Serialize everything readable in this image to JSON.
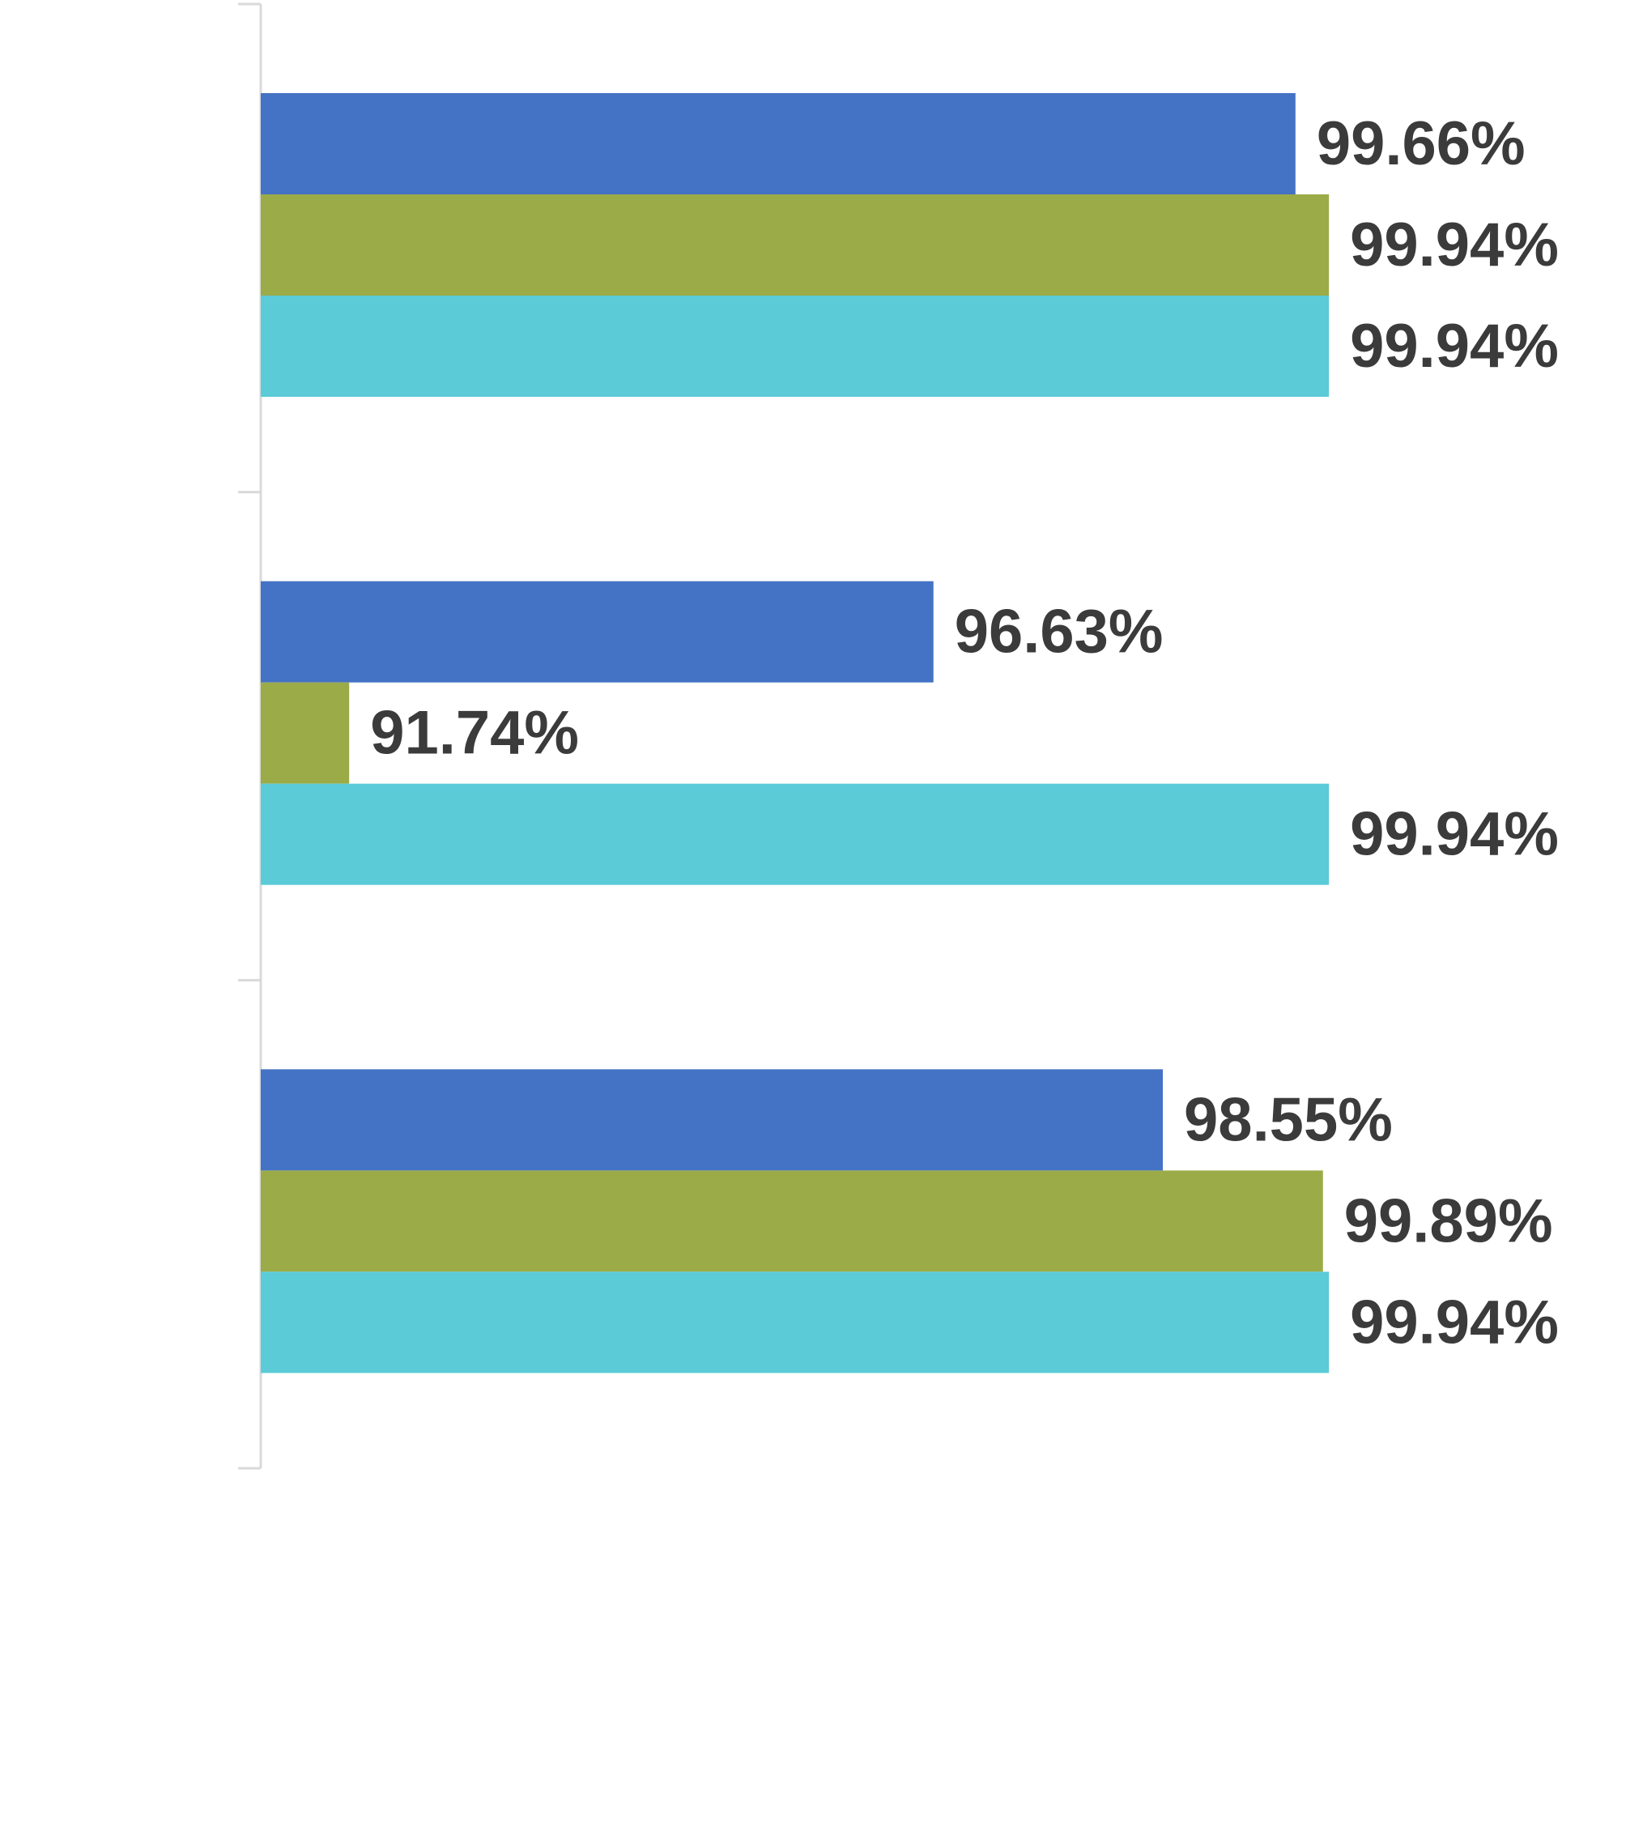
{
  "chart_data": {
    "type": "bar",
    "orientation": "horizontal",
    "categories": [
      "",
      "",
      ""
    ],
    "series": [
      {
        "color": "#4472c4",
        "values": [
          99.66,
          96.63,
          98.55
        ],
        "labels": [
          "99.66%",
          "96.63%",
          "98.55%"
        ]
      },
      {
        "color": "#9bab48",
        "values": [
          99.94,
          91.74,
          99.89
        ],
        "labels": [
          "99.94%",
          "91.74%",
          "99.89%"
        ]
      },
      {
        "color": "#5bcbd8",
        "values": [
          99.94,
          99.94,
          99.94
        ],
        "labels": [
          "99.94%",
          "99.94%",
          "99.94%"
        ]
      }
    ],
    "xlim": [
      91.0,
      100.0
    ],
    "x_axis_visible": false,
    "grid": false,
    "legend": "none",
    "title": "",
    "xlabel": "",
    "ylabel": ""
  }
}
